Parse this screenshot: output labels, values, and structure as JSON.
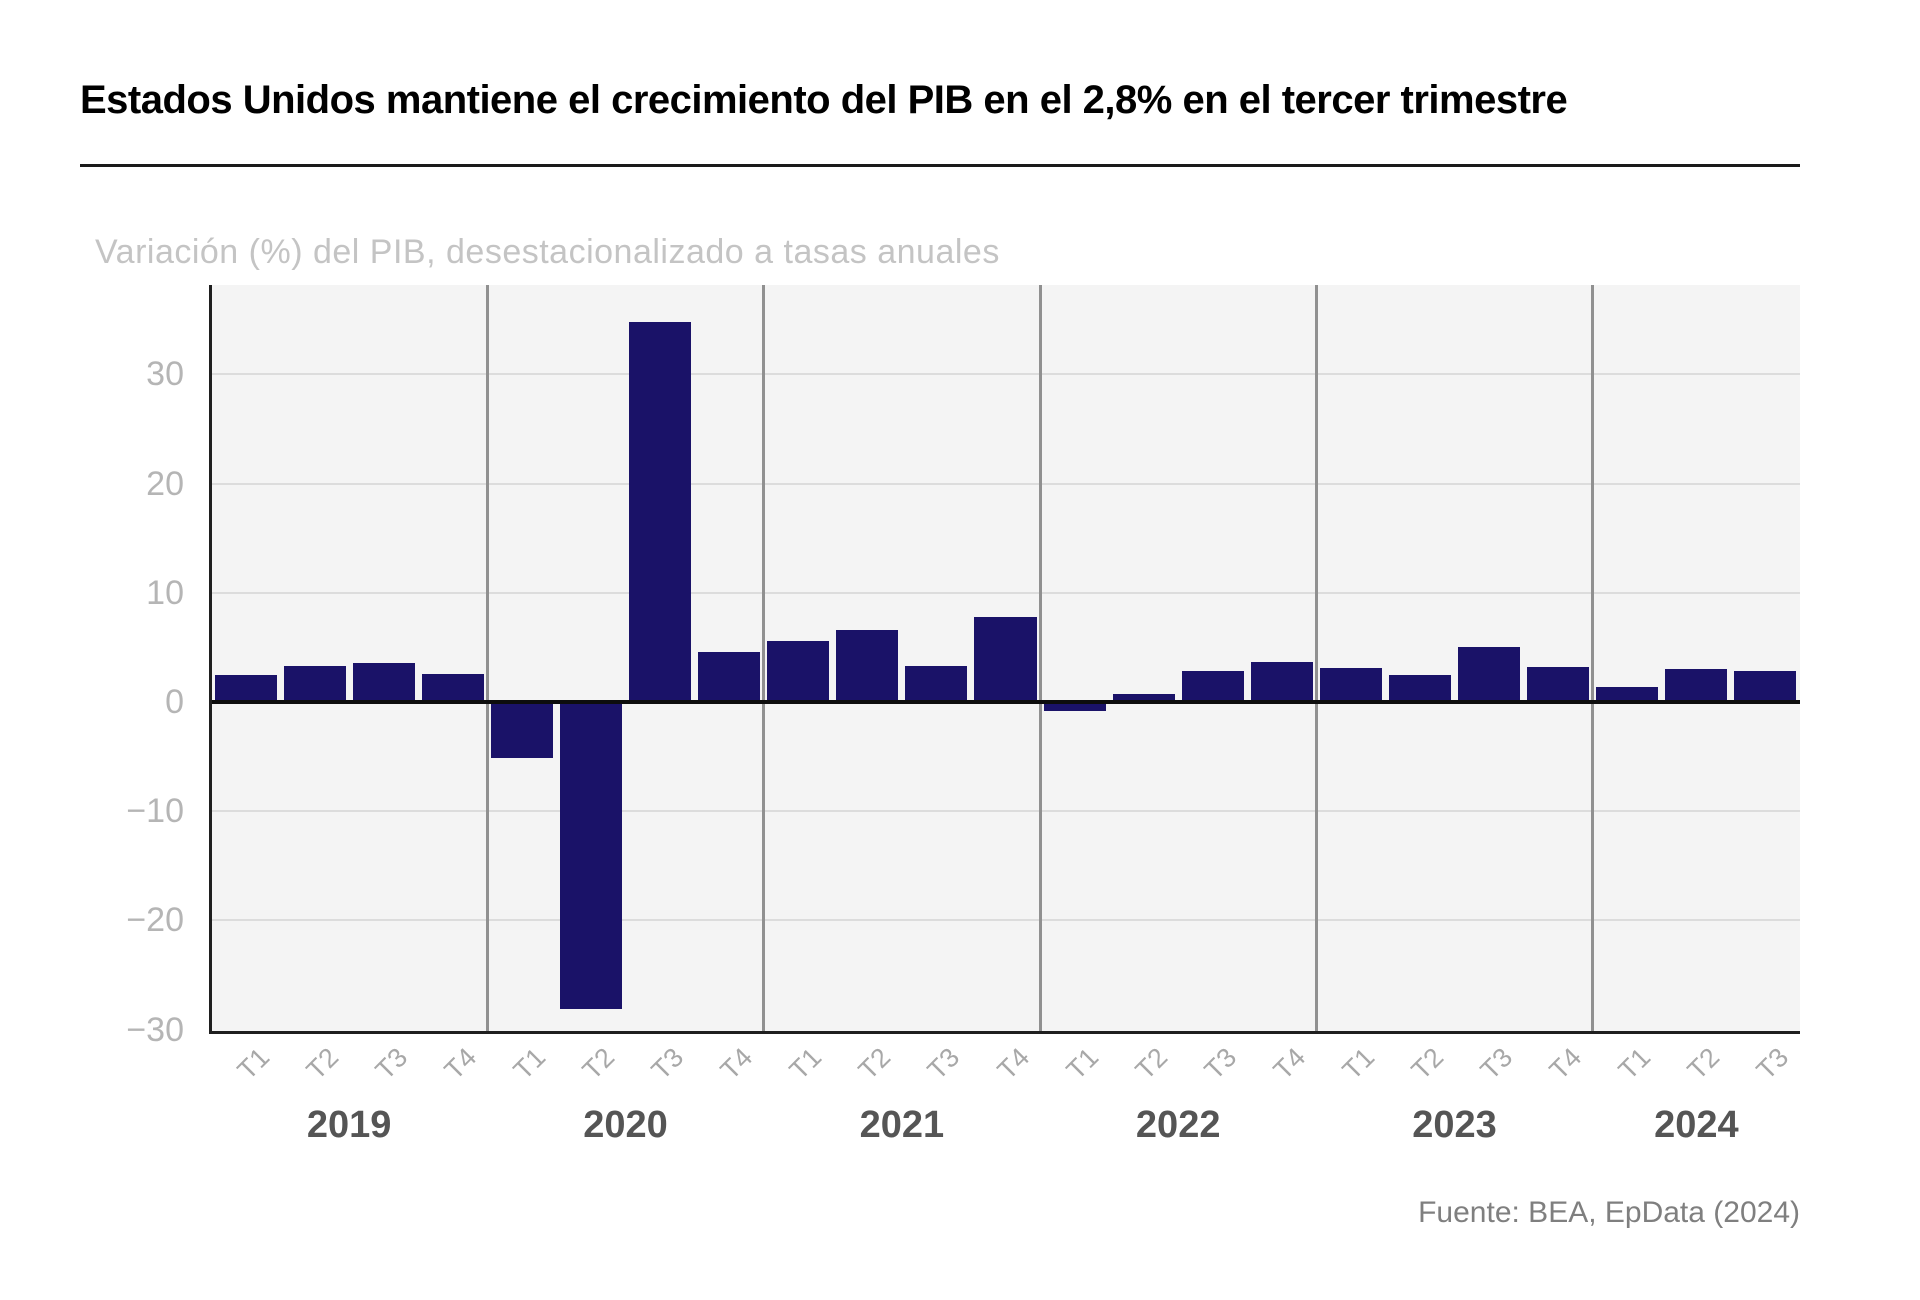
{
  "chart_data": {
    "type": "bar",
    "title": "Estados Unidos mantiene el crecimiento del PIB en el 2,8% en el tercer trimestre",
    "subtitle": "Variación (%) del PIB, desestacionalizado a tasas anuales",
    "source": "Fuente: BEA, EpData (2024)",
    "ylabel": "",
    "xlabel": "",
    "ylim": [
      -30.1,
      38.2
    ],
    "yticks": [
      30,
      20,
      10,
      0,
      -10,
      -20,
      -30
    ],
    "ytick_labels": [
      "30",
      "20",
      "10",
      "0",
      "−10",
      "−20",
      "−30"
    ],
    "grid": true,
    "legend": "none",
    "bar_color": "#1a1268",
    "plot_bg_color": "#f4f4f4",
    "gridline_color": "#dcdcdc",
    "year_separator_color": "#909090",
    "years": [
      {
        "year": "2019",
        "quarters": [
          "T1",
          "T2",
          "T3",
          "T4"
        ],
        "values": [
          2.5,
          3.3,
          3.6,
          2.6
        ]
      },
      {
        "year": "2020",
        "quarters": [
          "T1",
          "T2",
          "T3",
          "T4"
        ],
        "values": [
          -5.1,
          -28.1,
          34.8,
          4.6
        ]
      },
      {
        "year": "2021",
        "quarters": [
          "T1",
          "T2",
          "T3",
          "T4"
        ],
        "values": [
          5.6,
          6.6,
          3.3,
          7.8
        ]
      },
      {
        "year": "2022",
        "quarters": [
          "T1",
          "T2",
          "T3",
          "T4"
        ],
        "values": [
          -0.8,
          0.7,
          2.8,
          3.7
        ]
      },
      {
        "year": "2023",
        "quarters": [
          "T1",
          "T2",
          "T3",
          "T4"
        ],
        "values": [
          3.1,
          2.5,
          5.0,
          3.2
        ]
      },
      {
        "year": "2024",
        "quarters": [
          "T1",
          "T2",
          "T3"
        ],
        "values": [
          1.4,
          3.0,
          2.8
        ]
      }
    ]
  }
}
